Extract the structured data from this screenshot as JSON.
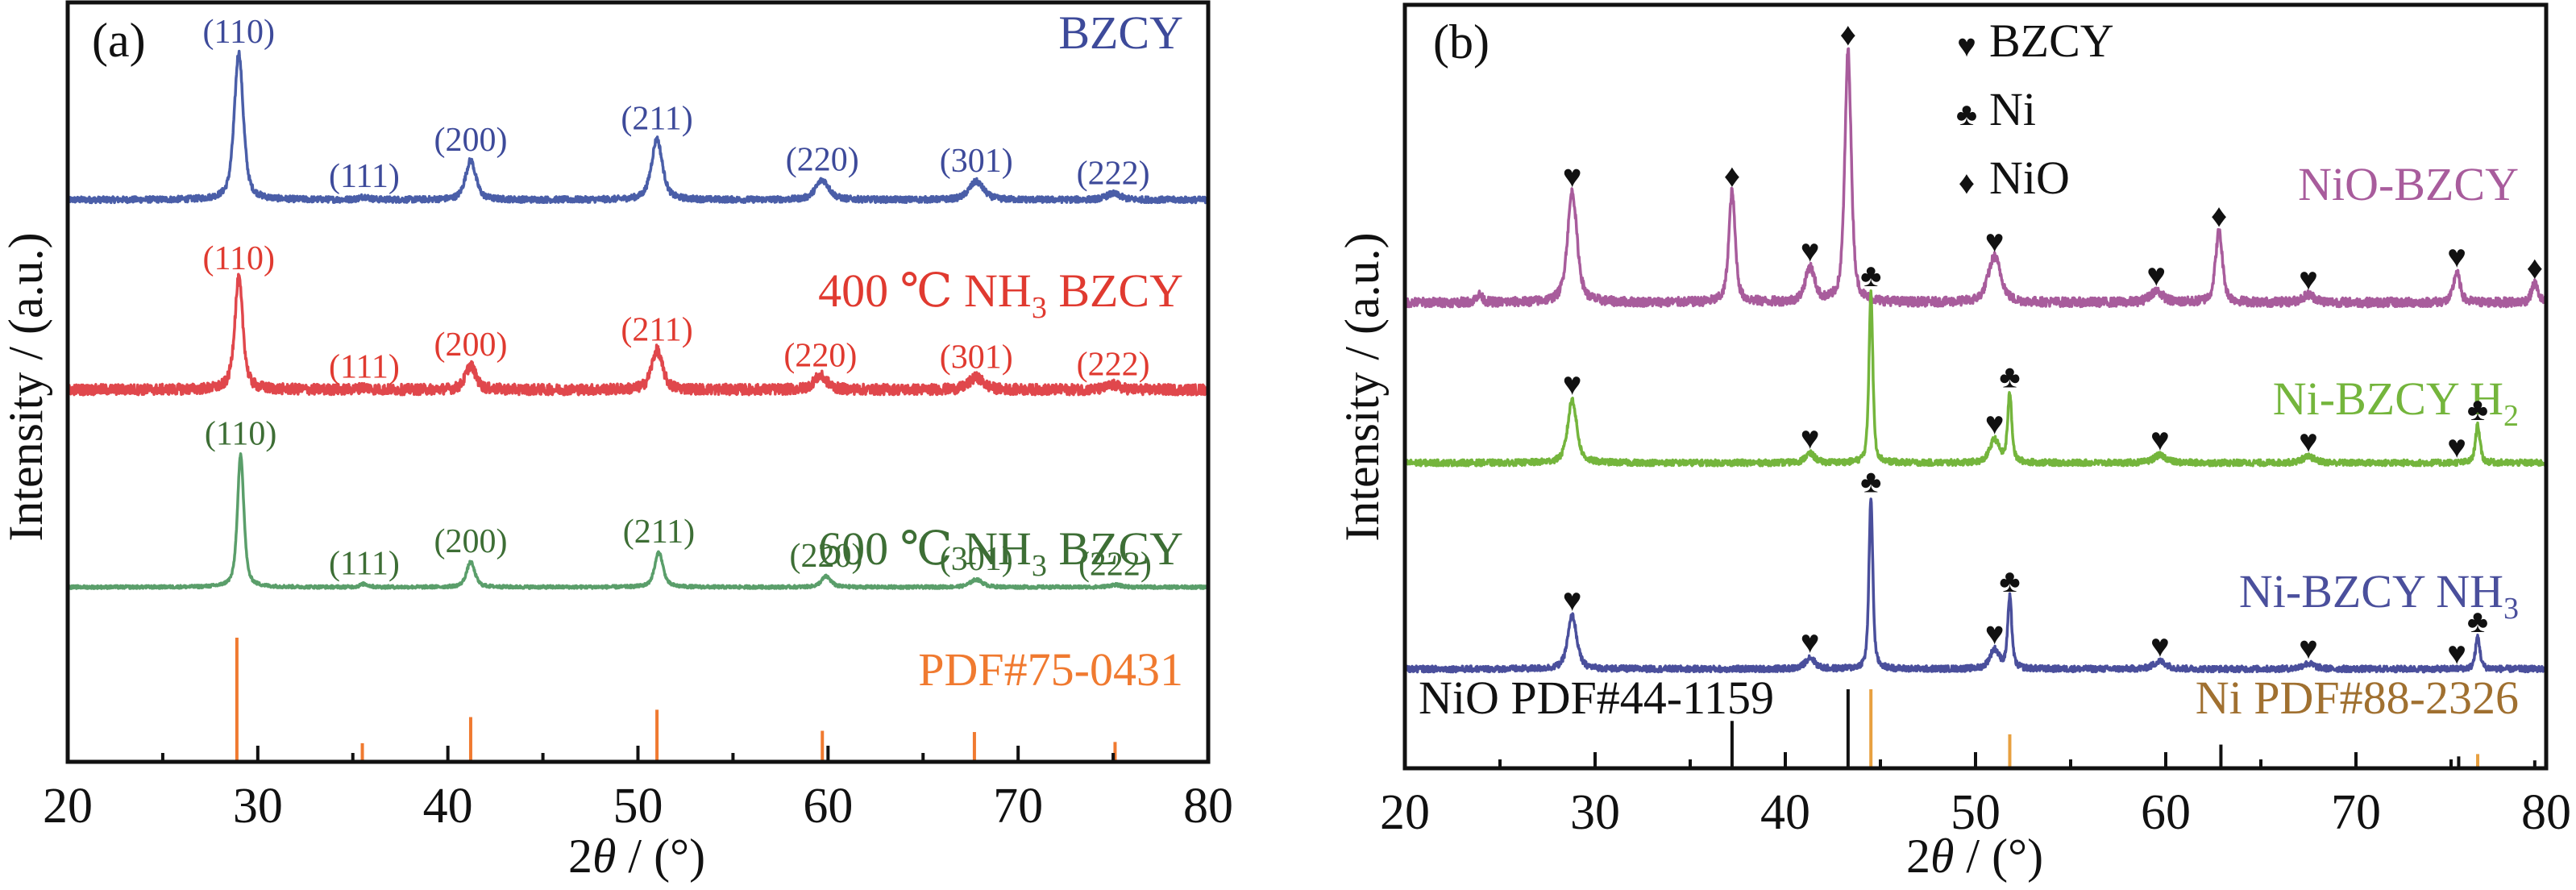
{
  "chart_data": [
    {
      "panel": "a",
      "type": "line",
      "panel_label": "(a)",
      "xlabel_prefix": "2",
      "xlabel_theta": "θ",
      "xlabel_suffix": " / (°)",
      "ylabel": "Intensity / (a.u.)",
      "xlim": [
        20,
        80
      ],
      "xticks": [
        20,
        30,
        40,
        50,
        60,
        70,
        80
      ],
      "minor_xticks": [
        25,
        35,
        45,
        55,
        65,
        75
      ],
      "yticks": [],
      "grid": false,
      "series": [
        {
          "name": "BZCY",
          "label_parts": [
            "BZCY"
          ],
          "color": "#4a5ea8",
          "label_color": "#3d4a9a",
          "offset": 0.74,
          "noise": 0.004,
          "peaks": [
            {
              "x": 29.0,
              "h": 0.194,
              "w": 0.28,
              "hkl": "(110)"
            },
            {
              "x": 35.6,
              "h": 0.004,
              "w": 0.3,
              "hkl": "(111)"
            },
            {
              "x": 41.2,
              "h": 0.052,
              "w": 0.32,
              "hkl": "(200)"
            },
            {
              "x": 51.0,
              "h": 0.08,
              "w": 0.34,
              "hkl": "(211)"
            },
            {
              "x": 59.7,
              "h": 0.026,
              "w": 0.42,
              "hkl": "(220)"
            },
            {
              "x": 67.8,
              "h": 0.024,
              "w": 0.45,
              "hkl": "(301)"
            },
            {
              "x": 75.0,
              "h": 0.008,
              "w": 0.45,
              "hkl": "(222)"
            }
          ]
        },
        {
          "name": "400 ℃ NH3 BZCY",
          "label_parts": [
            "400 ℃ NH",
            "3",
            " BZCY"
          ],
          "color": "#e0474c",
          "label_color": "#e03a30",
          "offset": 0.49,
          "noise": 0.007,
          "peaks": [
            {
              "x": 29.0,
              "h": 0.146,
              "w": 0.26,
              "hkl": "(110)"
            },
            {
              "x": 35.6,
              "h": 0.003,
              "w": 0.3,
              "hkl": "(111)"
            },
            {
              "x": 41.2,
              "h": 0.032,
              "w": 0.32,
              "hkl": "(200)"
            },
            {
              "x": 51.0,
              "h": 0.052,
              "w": 0.34,
              "hkl": "(211)"
            },
            {
              "x": 59.6,
              "h": 0.018,
              "w": 0.42,
              "hkl": "(220)"
            },
            {
              "x": 67.8,
              "h": 0.016,
              "w": 0.45,
              "hkl": "(301)"
            },
            {
              "x": 75.0,
              "h": 0.006,
              "w": 0.4,
              "hkl": "(222)"
            }
          ]
        },
        {
          "name": "600 ℃ NH3 BZCY",
          "label_parts": [
            "600 ℃ NH",
            "3",
            " BZCY"
          ],
          "color": "#5a9e6a",
          "label_color": "#3d6e35",
          "offset": 0.23,
          "noise": 0.002,
          "peaks": [
            {
              "x": 29.1,
              "h": 0.175,
              "w": 0.2,
              "hkl": "(110)"
            },
            {
              "x": 35.6,
              "h": 0.004,
              "w": 0.25,
              "hkl": "(111)"
            },
            {
              "x": 41.2,
              "h": 0.033,
              "w": 0.26,
              "hkl": "(200)"
            },
            {
              "x": 51.1,
              "h": 0.046,
              "w": 0.26,
              "hkl": "(211)"
            },
            {
              "x": 59.9,
              "h": 0.014,
              "w": 0.3,
              "hkl": "(220)"
            },
            {
              "x": 67.8,
              "h": 0.01,
              "w": 0.38,
              "hkl": "(301)"
            },
            {
              "x": 75.1,
              "h": 0.003,
              "w": 0.38,
              "hkl": "(222)"
            }
          ]
        }
      ],
      "reference": {
        "name": "PDF#75-0431",
        "color": "#f07a30",
        "lines": [
          {
            "x": 28.9,
            "rel": 100
          },
          {
            "x": 35.5,
            "rel": 15
          },
          {
            "x": 41.2,
            "rel": 36
          },
          {
            "x": 51.0,
            "rel": 42
          },
          {
            "x": 59.7,
            "rel": 25
          },
          {
            "x": 67.7,
            "rel": 24
          },
          {
            "x": 75.1,
            "rel": 16
          }
        ]
      }
    },
    {
      "panel": "b",
      "type": "line",
      "panel_label": "(b)",
      "xlabel_prefix": "2",
      "xlabel_theta": "θ",
      "xlabel_suffix": " / (°)",
      "ylabel": "Intensity / (a.u.)",
      "xlim": [
        20,
        80
      ],
      "xticks": [
        20,
        30,
        40,
        50,
        60,
        70,
        80
      ],
      "minor_xticks": [
        25,
        35,
        45,
        55,
        65,
        75
      ],
      "yticks": [],
      "grid": false,
      "legend": {
        "position": "top-right",
        "items": [
          {
            "symbol": "♥",
            "phase": "BZCY"
          },
          {
            "symbol": "♣",
            "phase": "Ni"
          },
          {
            "symbol": "♦",
            "phase": "NiO"
          }
        ]
      },
      "series": [
        {
          "name": "NiO-BZCY",
          "label_parts": [
            "NiO-BZCY"
          ],
          "color": "#a85c9c",
          "label_color": "#a85c9c",
          "offset": 0.61,
          "noise": 0.006,
          "peaks": [
            {
              "x": 23.9,
              "h": 0.01,
              "w": 0.2
            },
            {
              "x": 28.8,
              "h": 0.145,
              "w": 0.3,
              "marker": "♥"
            },
            {
              "x": 37.2,
              "h": 0.145,
              "w": 0.2,
              "marker": "♦"
            },
            {
              "x": 41.3,
              "h": 0.045,
              "w": 0.3,
              "marker": "♥"
            },
            {
              "x": 43.3,
              "h": 0.33,
              "w": 0.2,
              "marker": "♦"
            },
            {
              "x": 51.0,
              "h": 0.06,
              "w": 0.4,
              "marker": "♥"
            },
            {
              "x": 59.5,
              "h": 0.015,
              "w": 0.4,
              "marker": "♥"
            },
            {
              "x": 62.8,
              "h": 0.093,
              "w": 0.22,
              "marker": "♦"
            },
            {
              "x": 67.5,
              "h": 0.01,
              "w": 0.4,
              "marker": "♥"
            },
            {
              "x": 75.3,
              "h": 0.04,
              "w": 0.2,
              "marker": "♥"
            },
            {
              "x": 79.4,
              "h": 0.025,
              "w": 0.2,
              "marker": "♦"
            }
          ]
        },
        {
          "name": "Ni-BZCY H2",
          "label_parts": [
            "Ni-BZCY H",
            "2"
          ],
          "color": "#74b53c",
          "label_color": "#74b53c",
          "offset": 0.4,
          "noise": 0.004,
          "peaks": [
            {
              "x": 28.8,
              "h": 0.083,
              "w": 0.28,
              "marker": "♥"
            },
            {
              "x": 41.3,
              "h": 0.012,
              "w": 0.3,
              "marker": "♥"
            },
            {
              "x": 44.5,
              "h": 0.225,
              "w": 0.12,
              "marker": "♣"
            },
            {
              "x": 51.0,
              "h": 0.03,
              "w": 0.3,
              "marker": "♥"
            },
            {
              "x": 51.8,
              "h": 0.09,
              "w": 0.13,
              "marker": "♣"
            },
            {
              "x": 59.7,
              "h": 0.01,
              "w": 0.4,
              "marker": "♥"
            },
            {
              "x": 67.5,
              "h": 0.008,
              "w": 0.4,
              "marker": "♥"
            },
            {
              "x": 75.3,
              "h": 0.0,
              "w": 0.2,
              "marker": "♥"
            },
            {
              "x": 76.4,
              "h": 0.05,
              "w": 0.14,
              "marker": "♣"
            }
          ]
        },
        {
          "name": "Ni-BZCY NH3",
          "label_parts": [
            "Ni-BZCY NH",
            "3"
          ],
          "color": "#4a4f9c",
          "label_color": "#4a4f9c",
          "offset": 0.13,
          "noise": 0.004,
          "peaks": [
            {
              "x": 28.8,
              "h": 0.07,
              "w": 0.28,
              "marker": "♥"
            },
            {
              "x": 41.3,
              "h": 0.015,
              "w": 0.3,
              "marker": "♥"
            },
            {
              "x": 44.5,
              "h": 0.225,
              "w": 0.12,
              "marker": "♣"
            },
            {
              "x": 51.0,
              "h": 0.025,
              "w": 0.3,
              "marker": "♥"
            },
            {
              "x": 51.8,
              "h": 0.093,
              "w": 0.13,
              "marker": "♣"
            },
            {
              "x": 59.7,
              "h": 0.01,
              "w": 0.4,
              "marker": "♥"
            },
            {
              "x": 67.5,
              "h": 0.007,
              "w": 0.4,
              "marker": "♥"
            },
            {
              "x": 75.3,
              "h": 0.0,
              "w": 0.2,
              "marker": "♥"
            },
            {
              "x": 76.4,
              "h": 0.042,
              "w": 0.14,
              "marker": "♣"
            }
          ]
        }
      ],
      "references": [
        {
          "name": "NiO PDF#44-1159",
          "color": "#111111",
          "label_color": "#111111",
          "lines": [
            {
              "x": 37.2,
              "rel": 60
            },
            {
              "x": 43.3,
              "rel": 100
            },
            {
              "x": 62.9,
              "rel": 30
            },
            {
              "x": 75.4,
              "rel": 15
            },
            {
              "x": 79.4,
              "rel": 10
            }
          ]
        },
        {
          "name": "Ni PDF#88-2326",
          "color": "#e8a040",
          "label_color": "#a07030",
          "lines": [
            {
              "x": 44.5,
              "rel": 100
            },
            {
              "x": 51.8,
              "rel": 43
            },
            {
              "x": 76.4,
              "rel": 18
            }
          ]
        }
      ]
    }
  ]
}
